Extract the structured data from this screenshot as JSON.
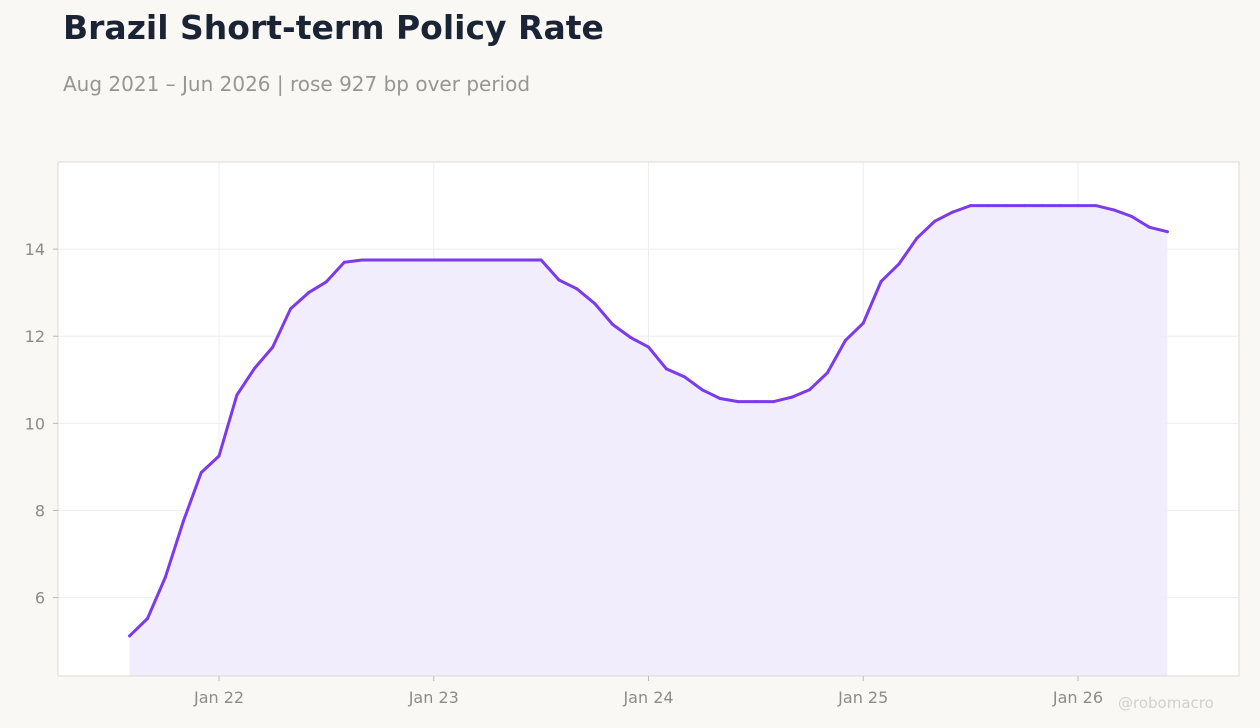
{
  "title": "Brazil Short-term Policy Rate",
  "subtitle": "Aug 2021 – Jun 2026 | rose 927 bp over period",
  "watermark": "@robomacro",
  "colors": {
    "line": "#7c3aed",
    "fill": "#f1ebfc",
    "grid": "#eeecf2",
    "frame": "#dcdad6",
    "plot_bg": "#ffffff",
    "page_bg": "#f9f8f5"
  },
  "chart_data": {
    "type": "area",
    "title": "Brazil Short-term Policy Rate",
    "subtitle": "Aug 2021 – Jun 2026 | rose 927 bp over period",
    "xlabel": "",
    "ylabel": "",
    "x_ticks": [
      {
        "date": "2022-01",
        "label": "Jan 22"
      },
      {
        "date": "2023-01",
        "label": "Jan 23"
      },
      {
        "date": "2024-01",
        "label": "Jan 24"
      },
      {
        "date": "2025-01",
        "label": "Jan 25"
      },
      {
        "date": "2026-01",
        "label": "Jan 26"
      }
    ],
    "y_ticks": [
      6,
      8,
      10,
      12,
      14
    ],
    "xlim": [
      "2021-04",
      "2026-10"
    ],
    "ylim": [
      4.2,
      16
    ],
    "grid": true,
    "series": [
      {
        "x": [
          "2021-08",
          "2021-09",
          "2021-10",
          "2021-11",
          "2021-12",
          "2022-01",
          "2022-02",
          "2022-03",
          "2022-04",
          "2022-05",
          "2022-06",
          "2022-07",
          "2022-08",
          "2022-09",
          "2022-10",
          "2022-11",
          "2022-12",
          "2023-01",
          "2023-02",
          "2023-03",
          "2023-04",
          "2023-05",
          "2023-06",
          "2023-07",
          "2023-08",
          "2023-09",
          "2023-10",
          "2023-11",
          "2023-12",
          "2024-01",
          "2024-02",
          "2024-03",
          "2024-04",
          "2024-05",
          "2024-06",
          "2024-07",
          "2024-08",
          "2024-09",
          "2024-10",
          "2024-11",
          "2024-12",
          "2025-01",
          "2025-02",
          "2025-03",
          "2025-04",
          "2025-05",
          "2025-06",
          "2025-07",
          "2025-08",
          "2025-09",
          "2025-10",
          "2025-11",
          "2025-12",
          "2026-01",
          "2026-02",
          "2026-03",
          "2026-04",
          "2026-05",
          "2026-06"
        ],
        "values": [
          5.12,
          5.52,
          6.47,
          7.75,
          8.87,
          9.25,
          10.65,
          11.27,
          11.75,
          12.63,
          13.0,
          13.25,
          13.7,
          13.75,
          13.75,
          13.75,
          13.75,
          13.75,
          13.75,
          13.75,
          13.75,
          13.75,
          13.75,
          13.75,
          13.29,
          13.09,
          12.75,
          12.27,
          11.97,
          11.75,
          11.25,
          11.07,
          10.77,
          10.57,
          10.5,
          10.5,
          10.5,
          10.6,
          10.77,
          11.16,
          11.9,
          12.3,
          13.26,
          13.66,
          14.25,
          14.64,
          14.85,
          15.0,
          15.0,
          15.0,
          15.0,
          15.0,
          15.0,
          15.0,
          15.0,
          14.9,
          14.75,
          14.5,
          14.4
        ]
      }
    ]
  }
}
